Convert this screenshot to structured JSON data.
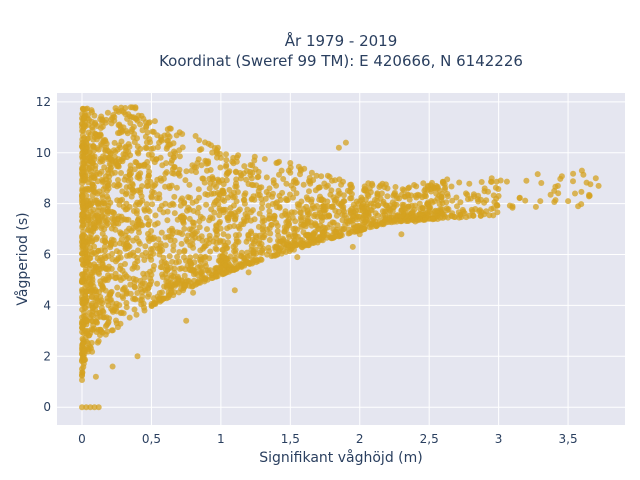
{
  "chart_data": {
    "type": "scatter",
    "title_lines": [
      "År 1979 - 2019",
      "Koordinat (Sweref 99 TM): E 420666, N 6142226"
    ],
    "xlabel": "Signifikant våghöjd (m)",
    "ylabel": "Vågperiod (s)",
    "xlim": [
      -0.18,
      3.91
    ],
    "ylim": [
      -0.7,
      12.35
    ],
    "x_ticks": [
      0,
      0.5,
      1,
      1.5,
      2,
      2.5,
      3,
      3.5
    ],
    "x_tick_labels": [
      "0",
      "0,5",
      "1",
      "1,5",
      "2",
      "2,5",
      "3",
      "3,5"
    ],
    "y_ticks": [
      0,
      2,
      4,
      6,
      8,
      10,
      12
    ],
    "y_tick_labels": [
      "0",
      "2",
      "4",
      "6",
      "8",
      "10",
      "12"
    ],
    "grid": true,
    "legend": "none",
    "colors": {
      "marker": "#d4a120",
      "plot_background": "#e5e6f0",
      "grid": "#ffffff",
      "text": "#2a3f5f"
    },
    "series": [
      {
        "values": [
          [
            0.0,
            0.0
          ],
          [
            0.03,
            0.0
          ],
          [
            0.06,
            0.0
          ],
          [
            0.09,
            0.0
          ],
          [
            0.12,
            0.0
          ],
          [
            0.0,
            1.5
          ],
          [
            0.02,
            2.2
          ],
          [
            0.04,
            3.0
          ],
          [
            0.05,
            4.0
          ],
          [
            0.06,
            5.2
          ],
          [
            0.07,
            6.5
          ],
          [
            0.08,
            7.6
          ],
          [
            0.09,
            9.0
          ],
          [
            0.1,
            1.2
          ],
          [
            0.12,
            2.6
          ],
          [
            0.14,
            4.2
          ],
          [
            0.15,
            5.6
          ],
          [
            0.16,
            7.0
          ],
          [
            0.18,
            8.5
          ],
          [
            0.2,
            9.8
          ],
          [
            0.22,
            1.6
          ],
          [
            0.25,
            3.3
          ],
          [
            0.28,
            5.0
          ],
          [
            0.3,
            6.4
          ],
          [
            0.32,
            8.0
          ],
          [
            0.35,
            9.5
          ],
          [
            0.37,
            10.6
          ],
          [
            0.3,
            11.6
          ],
          [
            0.36,
            11.4
          ],
          [
            0.4,
            2.0
          ],
          [
            0.45,
            3.8
          ],
          [
            0.5,
            5.2
          ],
          [
            0.55,
            6.6
          ],
          [
            0.6,
            8.0
          ],
          [
            0.65,
            9.2
          ],
          [
            0.7,
            10.1
          ],
          [
            0.75,
            3.4
          ],
          [
            0.8,
            4.5
          ],
          [
            0.85,
            5.8
          ],
          [
            0.9,
            7.0
          ],
          [
            0.95,
            8.4
          ],
          [
            1.0,
            9.8
          ],
          [
            1.05,
            9.2
          ],
          [
            1.1,
            4.6
          ],
          [
            1.2,
            5.3
          ],
          [
            1.25,
            6.2
          ],
          [
            1.3,
            7.3
          ],
          [
            1.35,
            8.6
          ],
          [
            1.4,
            9.6
          ],
          [
            1.5,
            9.6
          ],
          [
            1.55,
            5.9
          ],
          [
            1.6,
            6.4
          ],
          [
            1.7,
            7.0
          ],
          [
            1.75,
            7.9
          ],
          [
            1.8,
            8.9
          ],
          [
            1.85,
            10.2
          ],
          [
            1.9,
            10.4
          ],
          [
            1.95,
            6.3
          ],
          [
            2.0,
            6.8
          ],
          [
            2.1,
            7.4
          ],
          [
            2.15,
            8.2
          ],
          [
            2.2,
            8.6
          ],
          [
            2.3,
            6.8
          ],
          [
            2.4,
            7.3
          ],
          [
            2.5,
            7.8
          ],
          [
            2.55,
            8.4
          ],
          [
            2.6,
            8.8
          ],
          [
            2.7,
            7.9
          ],
          [
            2.8,
            8.2
          ],
          [
            2.9,
            8.6
          ],
          [
            2.95,
            9.0
          ],
          [
            3.0,
            8.3
          ],
          [
            3.1,
            7.9
          ],
          [
            3.2,
            8.9
          ],
          [
            3.3,
            8.1
          ],
          [
            3.4,
            8.5
          ],
          [
            3.5,
            8.1
          ],
          [
            3.55,
            8.4
          ],
          [
            3.6,
            9.3
          ],
          [
            3.7,
            9.0
          ],
          [
            3.72,
            8.7
          ]
        ]
      }
    ]
  }
}
